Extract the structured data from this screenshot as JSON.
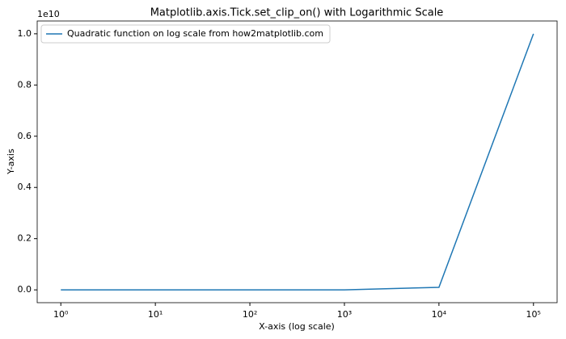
{
  "chart_data": {
    "type": "line",
    "title": "Matplotlib.axis.Tick.set_clip_on() with Logarithmic Scale",
    "x_label": "X-axis (log scale)",
    "y_label": "Y-axis",
    "y_offset_text": "1e10",
    "x_scale": "log",
    "x": [
      1,
      10,
      100,
      1000,
      10000,
      100000
    ],
    "series": [
      {
        "name": "Quadratic function on log scale from how2matplotlib.com",
        "color": "#1f77b4",
        "values": [
          1,
          100,
          10000,
          1000000,
          100000000,
          10000000000
        ]
      }
    ],
    "xlim": [
      0.5623,
      177828
    ],
    "xticks": [
      {
        "value": 1,
        "label": "10⁰"
      },
      {
        "value": 10,
        "label": "10¹"
      },
      {
        "value": 100,
        "label": "10²"
      },
      {
        "value": 1000,
        "label": "10³"
      },
      {
        "value": 10000,
        "label": "10⁴"
      },
      {
        "value": 100000,
        "label": "10⁵"
      }
    ],
    "ylim": [
      -500000000,
      10500000000
    ],
    "yticks": [
      {
        "value": 0,
        "label": "0.0"
      },
      {
        "value": 2000000000,
        "label": "0.2"
      },
      {
        "value": 4000000000,
        "label": "0.4"
      },
      {
        "value": 6000000000,
        "label": "0.6"
      },
      {
        "value": 8000000000,
        "label": "0.8"
      },
      {
        "value": 10000000000,
        "label": "1.0"
      }
    ],
    "legend": "upper left",
    "grid": false
  }
}
